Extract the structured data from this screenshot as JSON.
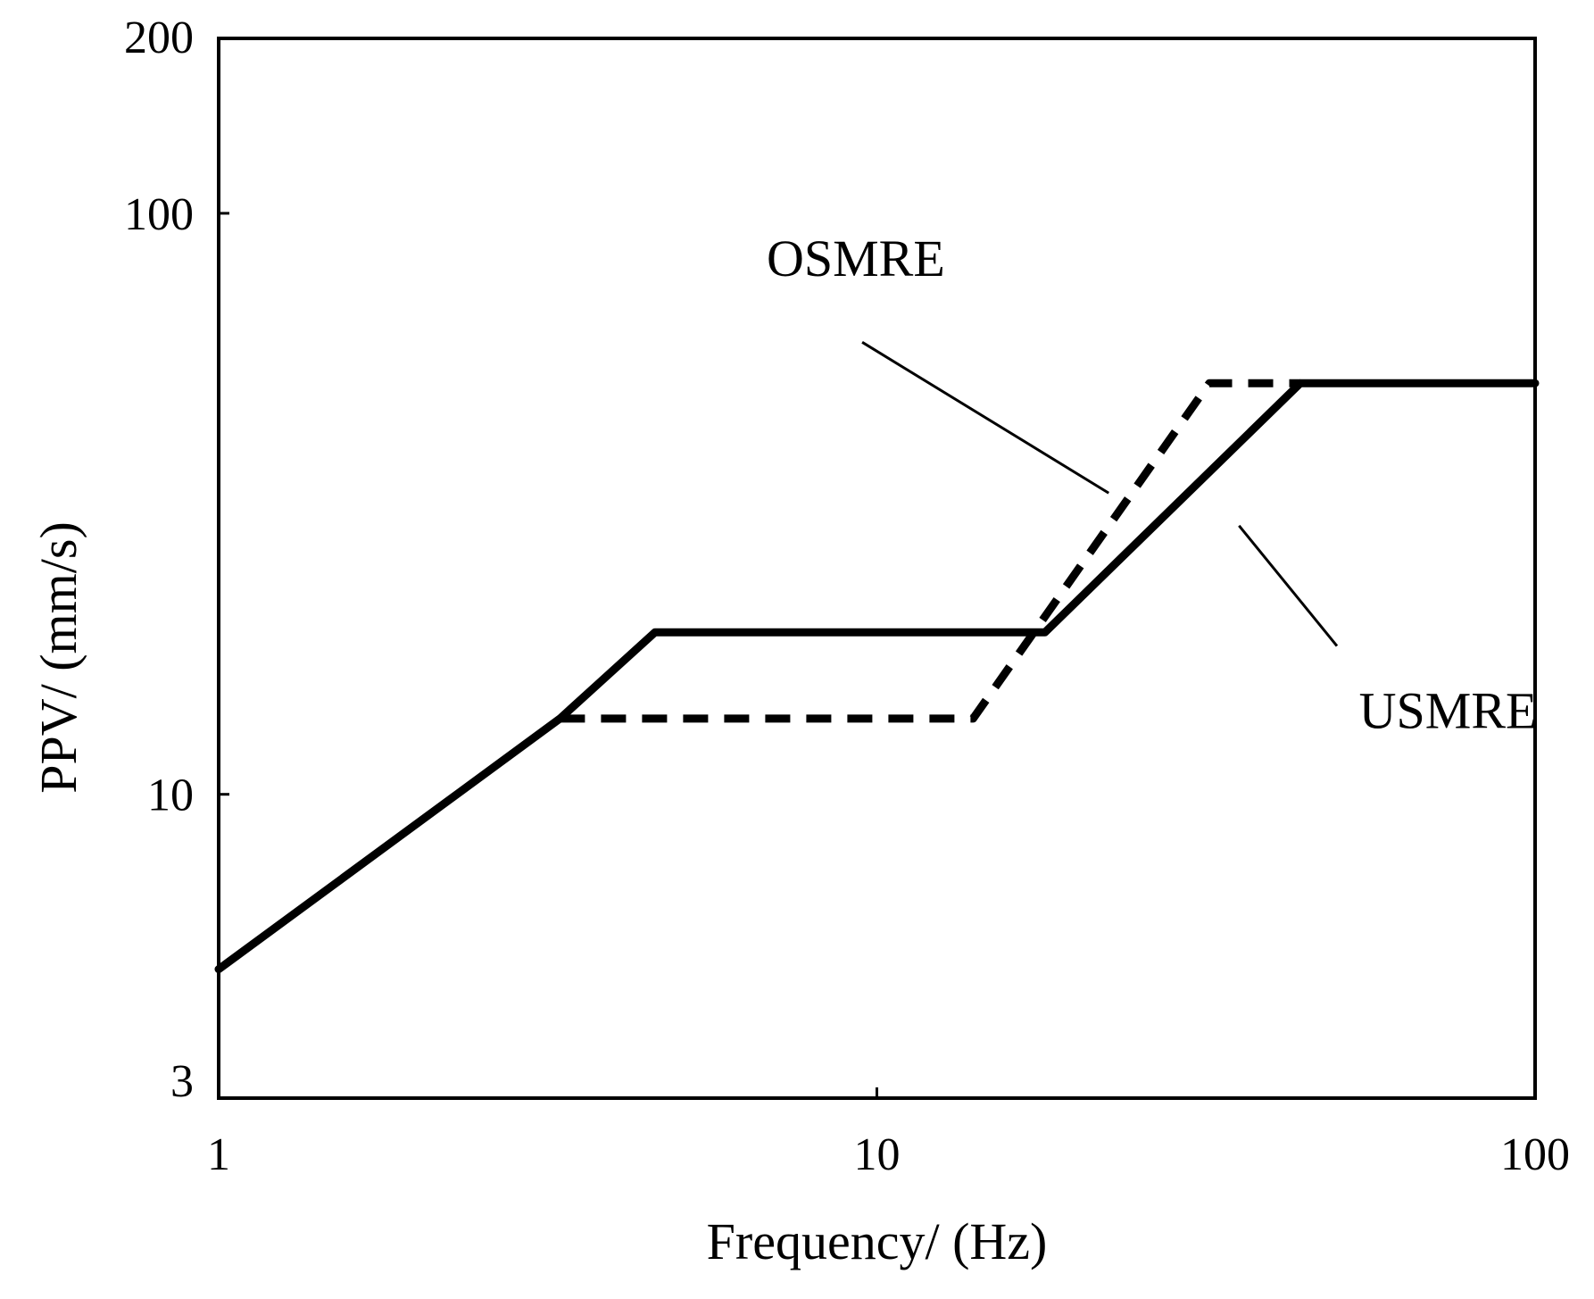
{
  "chart_data": {
    "type": "line",
    "title": "",
    "xlabel": "Frequency/ (Hz)",
    "ylabel": "PPV/ (mm/s)",
    "x_scale": "log",
    "y_scale": "log",
    "xlim": [
      1,
      100
    ],
    "ylim": [
      3,
      200
    ],
    "x_ticks": [
      1,
      10,
      100
    ],
    "y_ticks": [
      3,
      10,
      100,
      200
    ],
    "grid": false,
    "legend": "none",
    "series": [
      {
        "name": "USMRE",
        "style": "solid",
        "color": "#000000",
        "points": [
          [
            1,
            5.0
          ],
          [
            3.3,
            13.5
          ],
          [
            4.6,
            19.0
          ],
          [
            18.0,
            19.0
          ],
          [
            44.0,
            51.0
          ],
          [
            100,
            51.0
          ]
        ]
      },
      {
        "name": "OSMRE",
        "style": "dashed",
        "color": "#000000",
        "points": [
          [
            3.3,
            13.5
          ],
          [
            14.0,
            13.5
          ],
          [
            32.0,
            51.0
          ],
          [
            44.0,
            51.0
          ]
        ]
      }
    ],
    "annotations": [
      {
        "text": "OSMRE",
        "label_at": [
          6.8,
          78
        ],
        "pointer_from": [
          9.5,
          60
        ],
        "pointer_to": [
          22.5,
          33
        ]
      },
      {
        "text": "USMRE",
        "label_at": [
          54,
          13.0
        ],
        "pointer_from": [
          35.5,
          29
        ],
        "pointer_to": [
          50,
          18.0
        ]
      }
    ]
  }
}
